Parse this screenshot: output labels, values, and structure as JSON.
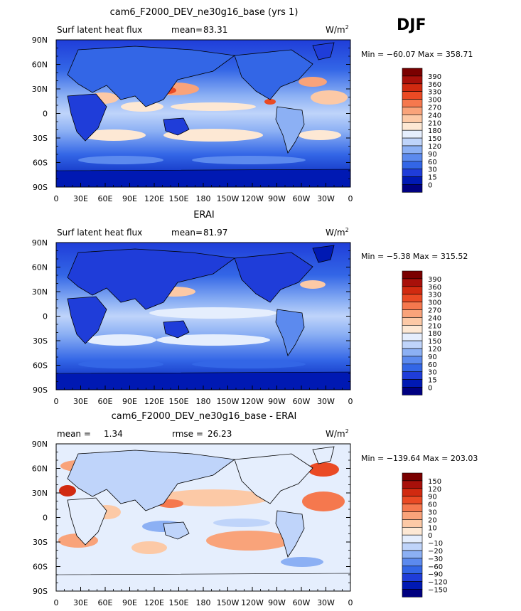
{
  "season": "DJF",
  "colors": {
    "abs_scale": [
      "#000080",
      "#0019b3",
      "#1f3dd9",
      "#3366e6",
      "#5c8aee",
      "#8cb0f4",
      "#bfd4fa",
      "#e5eefd",
      "#fde8d4",
      "#fcc9a6",
      "#f9a37a",
      "#f5784e",
      "#ea4a24",
      "#d12a10",
      "#a8100a",
      "#7a0000"
    ],
    "diff_scale": [
      "#000080",
      "#0019b3",
      "#1f3dd9",
      "#3366e6",
      "#5c8aee",
      "#8cb0f4",
      "#bfd4fa",
      "#e5eefd",
      "#fde8d4",
      "#fcc9a6",
      "#f9a37a",
      "#f5784e",
      "#ea4a24",
      "#d12a10",
      "#a8100a",
      "#7a0000"
    ]
  },
  "panels": [
    {
      "title": "cam6_F2000_DEV_ne30g16_base (yrs 1)",
      "left_label": "Surf latent heat flux",
      "mean_label": "mean=",
      "mean_value": "83.31",
      "units": "W/m",
      "units_sup": "2",
      "minmax": "Min = −60.07 Max = 358.71",
      "colorbar_labels": [
        "390",
        "360",
        "330",
        "300",
        "270",
        "240",
        "210",
        "180",
        "150",
        "120",
        "90",
        "60",
        "30",
        "15",
        "0"
      ]
    },
    {
      "title": "ERAI",
      "left_label": "Surf latent heat flux",
      "mean_label": "mean=",
      "mean_value": "81.97",
      "units": "W/m",
      "units_sup": "2",
      "minmax": "Min =  −5.38 Max = 315.52",
      "colorbar_labels": [
        "390",
        "360",
        "330",
        "300",
        "270",
        "240",
        "210",
        "180",
        "150",
        "120",
        "90",
        "60",
        "30",
        "15",
        "0"
      ]
    },
    {
      "title": "cam6_F2000_DEV_ne30g16_base - ERAI",
      "left_label": "mean =",
      "mean_label": "1.34",
      "rmse_label": "rmse =",
      "rmse_value": "26.23",
      "units": "W/m",
      "units_sup": "2",
      "minmax": "Min = −139.64 Max = 203.03",
      "colorbar_labels": [
        "150",
        "120",
        "90",
        "60",
        "30",
        "20",
        "10",
        "0",
        "−10",
        "−20",
        "−30",
        "−60",
        "−90",
        "−120",
        "−150"
      ]
    }
  ],
  "lat_ticks": [
    "90N",
    "60N",
    "30N",
    "0",
    "30S",
    "60S",
    "90S"
  ],
  "lon_ticks": [
    "0",
    "30E",
    "60E",
    "90E",
    "120E",
    "150E",
    "180",
    "150W",
    "120W",
    "90W",
    "60W",
    "30W",
    "0"
  ],
  "chart_data": [
    {
      "type": "heatmap",
      "title": "cam6_F2000_DEV_ne30g16_base (yrs 1)",
      "variable": "Surf latent heat flux",
      "units": "W/m2",
      "mean": 83.31,
      "min": -60.07,
      "max": 358.71,
      "levels": [
        0,
        15,
        30,
        60,
        90,
        120,
        150,
        180,
        210,
        240,
        270,
        300,
        330,
        360,
        390
      ],
      "xlim": [
        0,
        360
      ],
      "ylim": [
        -90,
        90
      ]
    },
    {
      "type": "heatmap",
      "title": "ERAI",
      "variable": "Surf latent heat flux",
      "units": "W/m2",
      "mean": 81.97,
      "min": -5.38,
      "max": 315.52,
      "levels": [
        0,
        15,
        30,
        60,
        90,
        120,
        150,
        180,
        210,
        240,
        270,
        300,
        330,
        360,
        390
      ],
      "xlim": [
        0,
        360
      ],
      "ylim": [
        -90,
        90
      ]
    },
    {
      "type": "heatmap",
      "title": "cam6_F2000_DEV_ne30g16_base - ERAI",
      "units": "W/m2",
      "mean": 1.34,
      "rmse": 26.23,
      "min": -139.64,
      "max": 203.03,
      "levels": [
        -150,
        -120,
        -90,
        -60,
        -30,
        -20,
        -10,
        0,
        10,
        20,
        30,
        60,
        90,
        120,
        150
      ],
      "xlim": [
        0,
        360
      ],
      "ylim": [
        -90,
        90
      ]
    }
  ]
}
